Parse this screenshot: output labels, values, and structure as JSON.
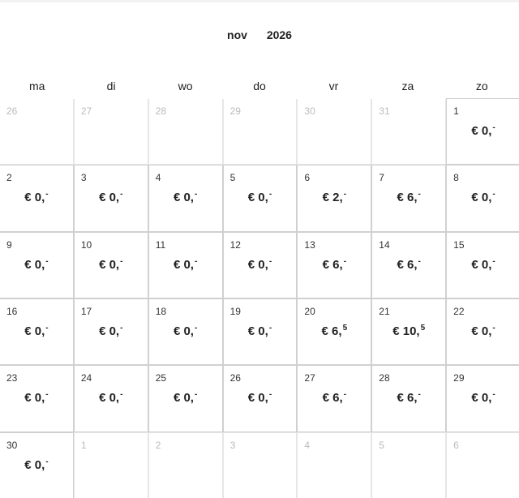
{
  "header": {
    "month": "nov",
    "year": "2026"
  },
  "weekdays": [
    "ma",
    "di",
    "wo",
    "do",
    "vr",
    "za",
    "zo"
  ],
  "weeks": [
    [
      {
        "day": "26",
        "out": true
      },
      {
        "day": "27",
        "out": true
      },
      {
        "day": "28",
        "out": true
      },
      {
        "day": "29",
        "out": true
      },
      {
        "day": "30",
        "out": true
      },
      {
        "day": "31",
        "out": true
      },
      {
        "day": "1",
        "price": "€ 0,",
        "cents": "-"
      }
    ],
    [
      {
        "day": "2",
        "price": "€ 0,",
        "cents": "-"
      },
      {
        "day": "3",
        "price": "€ 0,",
        "cents": "-"
      },
      {
        "day": "4",
        "price": "€ 0,",
        "cents": "-"
      },
      {
        "day": "5",
        "price": "€ 0,",
        "cents": "-"
      },
      {
        "day": "6",
        "price": "€ 2,",
        "cents": "-"
      },
      {
        "day": "7",
        "price": "€ 6,",
        "cents": "-"
      },
      {
        "day": "8",
        "price": "€ 0,",
        "cents": "-"
      }
    ],
    [
      {
        "day": "9",
        "price": "€ 0,",
        "cents": "-"
      },
      {
        "day": "10",
        "price": "€ 0,",
        "cents": "-"
      },
      {
        "day": "11",
        "price": "€ 0,",
        "cents": "-"
      },
      {
        "day": "12",
        "price": "€ 0,",
        "cents": "-"
      },
      {
        "day": "13",
        "price": "€ 6,",
        "cents": "-"
      },
      {
        "day": "14",
        "price": "€ 6,",
        "cents": "-"
      },
      {
        "day": "15",
        "price": "€ 0,",
        "cents": "-"
      }
    ],
    [
      {
        "day": "16",
        "price": "€ 0,",
        "cents": "-"
      },
      {
        "day": "17",
        "price": "€ 0,",
        "cents": "-"
      },
      {
        "day": "18",
        "price": "€ 0,",
        "cents": "-"
      },
      {
        "day": "19",
        "price": "€ 0,",
        "cents": "-"
      },
      {
        "day": "20",
        "price": "€ 6,",
        "cents": "5"
      },
      {
        "day": "21",
        "price": "€ 10,",
        "cents": "5"
      },
      {
        "day": "22",
        "price": "€ 0,",
        "cents": "-"
      }
    ],
    [
      {
        "day": "23",
        "price": "€ 0,",
        "cents": "-"
      },
      {
        "day": "24",
        "price": "€ 0,",
        "cents": "-"
      },
      {
        "day": "25",
        "price": "€ 0,",
        "cents": "-"
      },
      {
        "day": "26",
        "price": "€ 0,",
        "cents": "-"
      },
      {
        "day": "27",
        "price": "€ 6,",
        "cents": "-"
      },
      {
        "day": "28",
        "price": "€ 6,",
        "cents": "-"
      },
      {
        "day": "29",
        "price": "€ 0,",
        "cents": "-"
      }
    ],
    [
      {
        "day": "30",
        "price": "€ 0,",
        "cents": "-"
      },
      {
        "day": "1",
        "out": true
      },
      {
        "day": "2",
        "out": true
      },
      {
        "day": "3",
        "out": true
      },
      {
        "day": "4",
        "out": true
      },
      {
        "day": "5",
        "out": true
      },
      {
        "day": "6",
        "out": true
      }
    ]
  ]
}
